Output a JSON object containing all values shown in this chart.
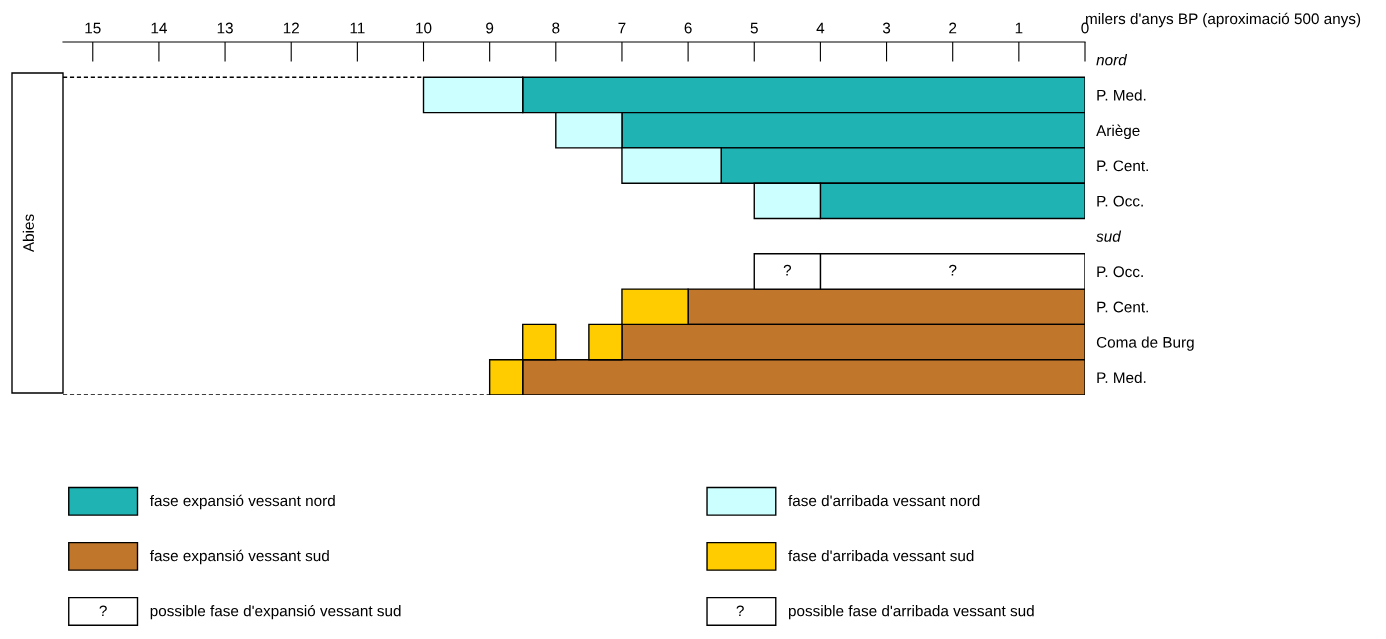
{
  "chart_data": {
    "type": "bar",
    "orientation": "horizontal",
    "xlabel": "milers d'anys BP (aproximació 500 anys)",
    "ylabel": "Abies",
    "categories": [
      "nord",
      "P. Med.",
      "Ariège",
      "P. Cent.",
      "P. Occ.",
      "sud",
      "P. Occ.",
      "P. Cent.",
      "Coma de Burg",
      "P. Med."
    ],
    "xlim": [
      15.45,
      0
    ],
    "xticks": [
      15,
      14,
      13,
      12,
      11,
      10,
      9,
      8,
      7,
      6,
      5,
      4,
      3,
      2,
      1,
      0
    ],
    "legend": "bottom",
    "grid": false,
    "series": [
      {
        "name": "fase expansió vessant nord",
        "color": "#1fb3b3",
        "values": [
          null,
          8.5,
          7,
          5.5,
          4,
          null,
          null,
          null,
          null,
          null
        ],
        "base": [
          null,
          0,
          0,
          0,
          0,
          null,
          null,
          null,
          null,
          null
        ]
      },
      {
        "name": "fase d'arribada vessant nord",
        "color": "#ccffff",
        "values": [
          null,
          1.5,
          1,
          1.5,
          1,
          null,
          null,
          null,
          null,
          null
        ],
        "base": [
          null,
          8.5,
          7,
          5.5,
          4,
          null,
          null,
          null,
          null,
          null
        ]
      },
      {
        "name": "fase expansió vessant sud",
        "color": "#c0772b",
        "values": [
          null,
          null,
          null,
          null,
          null,
          null,
          null,
          6,
          7,
          8.5
        ],
        "base": [
          null,
          null,
          null,
          null,
          null,
          null,
          null,
          0,
          0,
          0
        ]
      },
      {
        "name": "fase d'arribada vessant sud",
        "color": "#ffcc00",
        "values": [
          null,
          null,
          null,
          null,
          null,
          null,
          null,
          1,
          0.5,
          0.5
        ],
        "base": [
          null,
          null,
          null,
          null,
          null,
          null,
          null,
          6,
          8,
          8.5
        ]
      },
      {
        "color": "#ffcc00",
        "values": [
          null,
          null,
          null,
          null,
          null,
          null,
          null,
          null,
          0.5,
          null
        ],
        "base": [
          null,
          null,
          null,
          null,
          null,
          null,
          null,
          null,
          7,
          null
        ]
      },
      {
        "name": "possible fase d'expansió vessant sud",
        "color": "#ffffff",
        "values": [
          null,
          null,
          null,
          null,
          null,
          null,
          4,
          null,
          null,
          null
        ],
        "base": [
          null,
          null,
          null,
          null,
          null,
          null,
          0,
          null,
          null,
          null
        ],
        "value_labels": [
          null,
          null,
          null,
          null,
          null,
          null,
          "?",
          null,
          null,
          null
        ]
      },
      {
        "name": "possible fase d'arribada vessant sud",
        "color": "#ffffff",
        "values": [
          null,
          null,
          null,
          null,
          null,
          null,
          1,
          null,
          null,
          null
        ],
        "base": [
          null,
          null,
          null,
          null,
          null,
          null,
          4,
          null,
          null,
          null
        ],
        "value_labels": [
          null,
          null,
          null,
          null,
          null,
          null,
          "?",
          null,
          null,
          null
        ]
      }
    ]
  }
}
